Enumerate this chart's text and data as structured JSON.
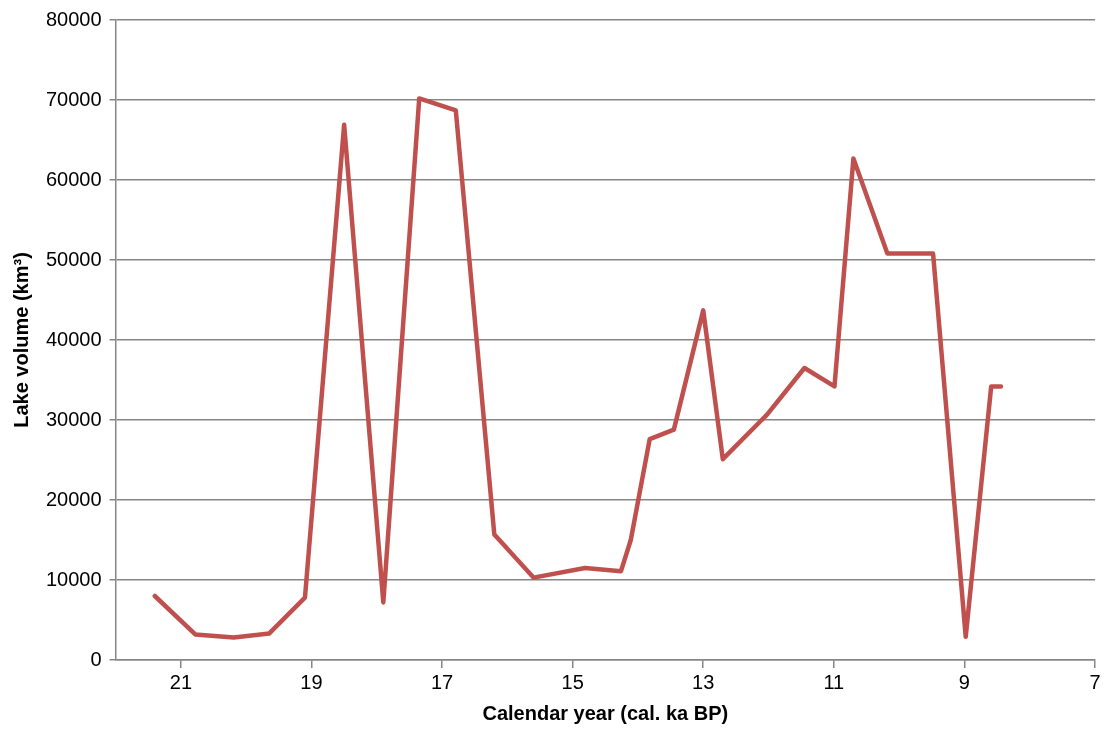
{
  "chart_data": {
    "type": "line",
    "xlabel": "Calendar year (cal. ka BP)",
    "ylabel": "Lake volume (km³)",
    "xlim": [
      22,
      7
    ],
    "xticks": [
      21,
      19,
      17,
      15,
      13,
      11,
      9,
      7
    ],
    "ylim": [
      0,
      80000
    ],
    "yticks": [
      0,
      10000,
      20000,
      30000,
      40000,
      50000,
      60000,
      70000,
      80000
    ],
    "grid": "y",
    "legend": false,
    "marker": "none",
    "line_style": "solid",
    "series": [
      {
        "color": "#c0504d",
        "x": [
          21.4,
          20.78,
          20.19,
          19.65,
          19.1,
          18.5,
          17.9,
          17.35,
          16.79,
          16.2,
          15.6,
          14.81,
          14.26,
          14.11,
          13.82,
          13.45,
          13.0,
          12.7,
          12.02,
          11.45,
          10.99,
          10.7,
          10.18,
          9.48,
          8.98,
          8.59,
          8.44
        ],
        "values": [
          8000,
          3200,
          2800,
          3300,
          7800,
          66900,
          7200,
          70200,
          68700,
          15700,
          10300,
          11500,
          11100,
          15000,
          27600,
          28800,
          43700,
          25100,
          30700,
          36500,
          34200,
          62700,
          50800,
          50800,
          2900,
          34200,
          34200
        ]
      }
    ]
  }
}
